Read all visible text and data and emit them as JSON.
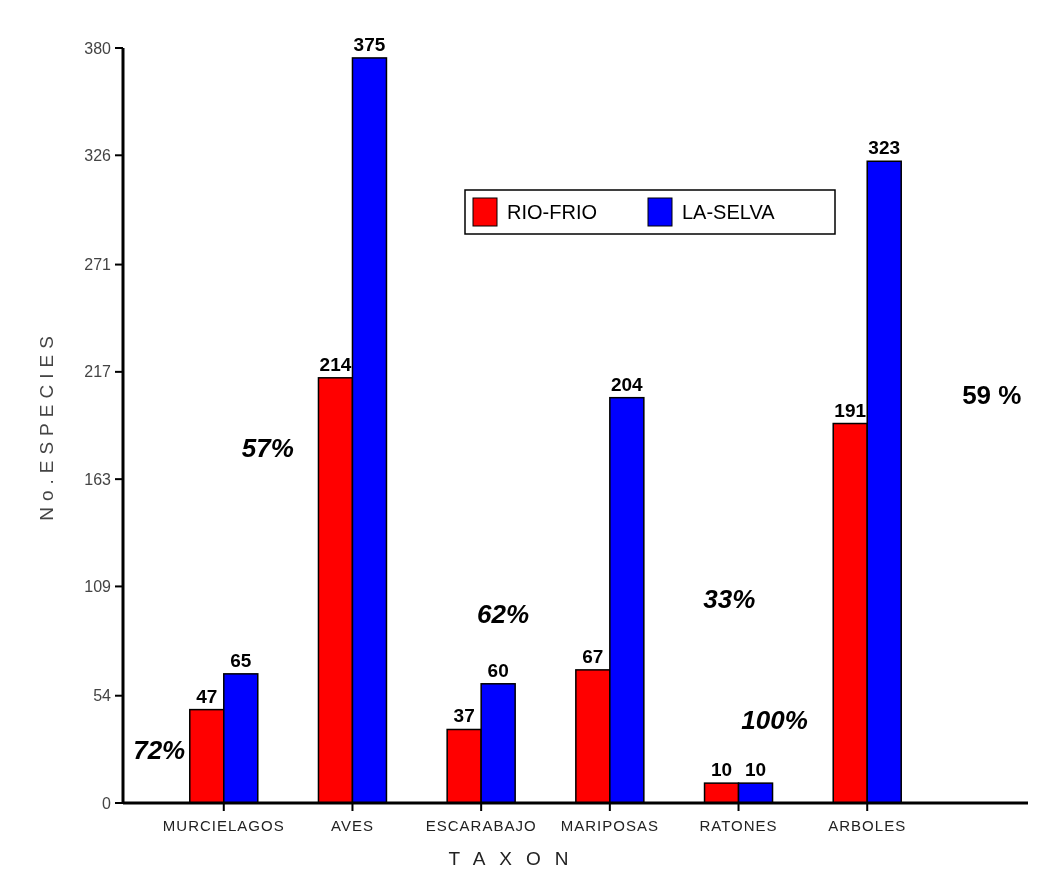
{
  "chart_data": {
    "type": "bar",
    "xlabel": "TAXON",
    "ylabel": "No.ESPECIES",
    "categories": [
      "MURCIELAGOS",
      "AVES",
      "ESCARABAJO",
      "MARIPOSAS",
      "RATONES",
      "ARBOLES"
    ],
    "series": [
      {
        "name": "RIO-FRIO",
        "color": "#ff0000",
        "values": [
          47,
          214,
          37,
          67,
          10,
          191
        ]
      },
      {
        "name": "LA-SELVA",
        "color": "#0000ff",
        "values": [
          65,
          375,
          60,
          204,
          10,
          323
        ]
      }
    ],
    "ylim": [
      0,
      380
    ],
    "yticks": [
      0,
      54,
      109,
      163,
      217,
      271,
      326,
      380
    ],
    "grid": false,
    "legend": "top",
    "data_labels": true,
    "annotations": [
      "72%",
      "57%",
      "62%",
      "33%",
      "100%",
      "59 %"
    ]
  }
}
